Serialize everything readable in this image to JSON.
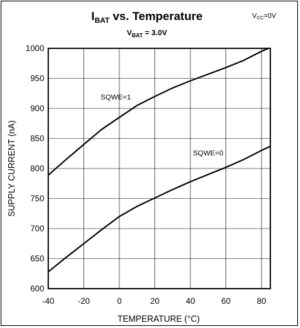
{
  "chart_data": {
    "type": "line",
    "title": {
      "main": "I",
      "sub": "BAT",
      "rest": " vs. Temperature"
    },
    "subtitle": {
      "main": "V",
      "sub": "BAT",
      "rest": " = 3.0V"
    },
    "condition": {
      "main": "V",
      "sub": "CC",
      "rest": "=0V"
    },
    "xlabel": "TEMPERATURE (°C)",
    "ylabel": "SUPPLY CURRENT (nA)",
    "xlim": [
      -40,
      85
    ],
    "ylim": [
      600,
      1000
    ],
    "xticks": [
      -40,
      -20,
      0,
      20,
      40,
      60,
      80
    ],
    "yticks": [
      600,
      650,
      700,
      750,
      800,
      850,
      900,
      950,
      1000
    ],
    "grid": true,
    "series": [
      {
        "name": "SQWE=1",
        "x": [
          -40,
          -30,
          -20,
          -10,
          0,
          10,
          20,
          30,
          40,
          50,
          60,
          70,
          80,
          84
        ],
        "y": [
          789,
          815,
          840,
          865,
          885,
          905,
          920,
          934,
          946,
          957,
          968,
          980,
          995,
          1000
        ]
      },
      {
        "name": "SQWE=0",
        "x": [
          -40,
          -30,
          -20,
          -10,
          0,
          10,
          20,
          30,
          40,
          50,
          60,
          70,
          80,
          85
        ],
        "y": [
          628,
          652,
          675,
          698,
          720,
          737,
          751,
          765,
          778,
          790,
          802,
          815,
          830,
          837
        ]
      }
    ]
  }
}
